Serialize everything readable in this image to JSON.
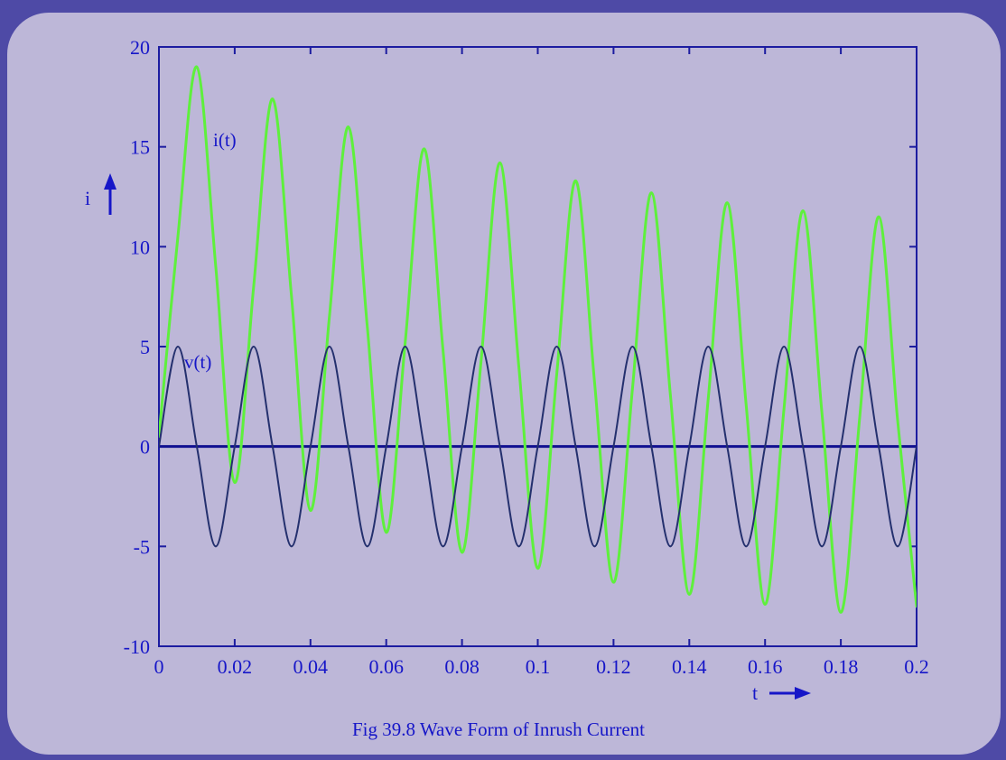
{
  "chart_data": {
    "type": "line",
    "title": "",
    "caption": "Fig 39.8 Wave Form of Inrush Current",
    "xlabel": "t",
    "ylabel": "i",
    "xlim": [
      0,
      0.2
    ],
    "ylim": [
      -10,
      20
    ],
    "x_ticks": [
      "0",
      "0.02",
      "0.04",
      "0.06",
      "0.08",
      "0.1",
      "0.12",
      "0.14",
      "0.16",
      "0.18",
      "0.2"
    ],
    "y_ticks": [
      "20",
      "15",
      "10",
      "5",
      "0",
      "-5",
      "-10"
    ],
    "grid": false,
    "colors": {
      "current": "#5ef03c",
      "voltage": "#24306e",
      "axis": "#1c1ca0",
      "text": "#1616c8",
      "zero_line": "#101090"
    },
    "series": [
      {
        "name": "i(t)",
        "x": [
          0,
          0.005,
          0.01,
          0.015,
          0.02,
          0.025,
          0.03,
          0.035,
          0.04,
          0.045,
          0.05,
          0.055,
          0.06,
          0.065,
          0.07,
          0.075,
          0.08,
          0.085,
          0.09,
          0.095,
          0.1,
          0.105,
          0.11,
          0.115,
          0.12,
          0.125,
          0.13,
          0.135,
          0.14,
          0.145,
          0.15,
          0.155,
          0.16,
          0.165,
          0.17,
          0.175,
          0.18,
          0.185,
          0.19,
          0.195,
          0.2
        ],
        "values": [
          0.5,
          10.5,
          19,
          9,
          -1.8,
          8,
          17.4,
          7.5,
          -3.2,
          6.5,
          16,
          6,
          -4.3,
          5.2,
          14.9,
          4.8,
          -5.3,
          4.2,
          14.2,
          4,
          -6.1,
          3.6,
          13.3,
          3.2,
          -6.8,
          2.9,
          12.7,
          2.6,
          -7.4,
          2.4,
          12.2,
          2.1,
          -7.9,
          1.9,
          11.8,
          1.7,
          -8.3,
          1.5,
          11.5,
          1.3,
          -8
        ]
      },
      {
        "name": "v(t)",
        "x": [
          0,
          0.005,
          0.01,
          0.015,
          0.02,
          0.025,
          0.03,
          0.035,
          0.04,
          0.045,
          0.05,
          0.055,
          0.06,
          0.065,
          0.07,
          0.075,
          0.08,
          0.085,
          0.09,
          0.095,
          0.1,
          0.105,
          0.11,
          0.115,
          0.12,
          0.125,
          0.13,
          0.135,
          0.14,
          0.145,
          0.15,
          0.155,
          0.16,
          0.165,
          0.17,
          0.175,
          0.18,
          0.185,
          0.19,
          0.195,
          0.2
        ],
        "values": [
          0,
          5,
          0,
          -5,
          0,
          5,
          0,
          -5,
          0,
          5,
          0,
          -5,
          0,
          5,
          0,
          -5,
          0,
          5,
          0,
          -5,
          0,
          5,
          0,
          -5,
          0,
          5,
          0,
          -5,
          0,
          5,
          0,
          -5,
          0,
          5,
          0,
          -5,
          0,
          5,
          0,
          -5,
          0
        ]
      }
    ]
  }
}
